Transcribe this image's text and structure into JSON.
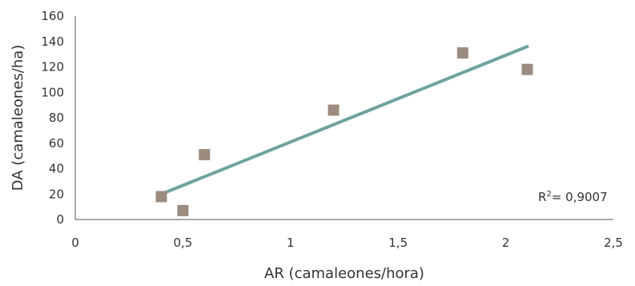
{
  "chart_data": {
    "type": "scatter",
    "title": "",
    "xlabel": "AR (camaleones/hora)",
    "ylabel": "DA (camaleones/ha)",
    "xlim": [
      0,
      2.5
    ],
    "ylim": [
      0,
      160
    ],
    "xticks": [
      {
        "value": 0,
        "label": "0"
      },
      {
        "value": 0.5,
        "label": "0,5"
      },
      {
        "value": 1,
        "label": "1"
      },
      {
        "value": 1.5,
        "label": "1,5"
      },
      {
        "value": 2,
        "label": "2"
      },
      {
        "value": 2.5,
        "label": "2,5"
      }
    ],
    "yticks": [
      {
        "value": 0,
        "label": "0"
      },
      {
        "value": 20,
        "label": "20"
      },
      {
        "value": 40,
        "label": "40"
      },
      {
        "value": 60,
        "label": "60"
      },
      {
        "value": 80,
        "label": "80"
      },
      {
        "value": 100,
        "label": "100"
      },
      {
        "value": 120,
        "label": "120"
      },
      {
        "value": 140,
        "label": "140"
      },
      {
        "value": 160,
        "label": "160"
      }
    ],
    "grid": false,
    "series": [
      {
        "marker": "square",
        "color": "#9c8b7f",
        "points": [
          {
            "x": 0.4,
            "y": 18
          },
          {
            "x": 0.5,
            "y": 7
          },
          {
            "x": 0.6,
            "y": 51
          },
          {
            "x": 1.2,
            "y": 86
          },
          {
            "x": 1.8,
            "y": 131
          },
          {
            "x": 2.1,
            "y": 118
          }
        ]
      }
    ],
    "trendline": {
      "type": "linear",
      "color": "#6fa3a0",
      "x_start": 0.4,
      "y_start": 20,
      "x_end": 2.1,
      "y_end": 136
    },
    "annotation": {
      "r2_prefix": "R",
      "r2_sup": "2",
      "r2_value": "= 0,9007"
    },
    "axis_color": "#555555"
  }
}
